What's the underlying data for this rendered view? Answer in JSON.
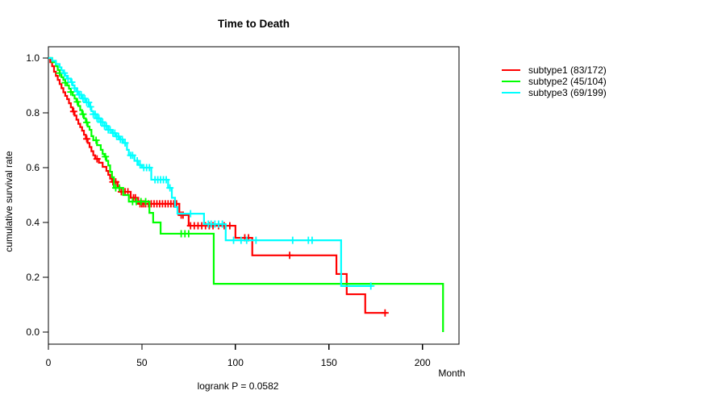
{
  "title": "Time to Death",
  "x_axis": {
    "label": "Month",
    "tick_labels": [
      "0",
      "50",
      "100",
      "150",
      "200"
    ],
    "tick_values": [
      0,
      50,
      100,
      150,
      200
    ]
  },
  "y_axis": {
    "label": "cumulative survival rate",
    "tick_labels": [
      "0.0",
      "0.2",
      "0.4",
      "0.6",
      "0.8",
      "1.0"
    ],
    "tick_values": [
      0,
      0.2,
      0.4,
      0.6,
      0.8,
      1.0
    ]
  },
  "footer": {
    "logrank_text": "logrank P = 0.0582"
  },
  "legend": {
    "position": "right-outside",
    "items": [
      {
        "label": "subtype1 (83/172)",
        "color": "#FF0000"
      },
      {
        "label": "subtype2 (45/104)",
        "color": "#00FF00"
      },
      {
        "label": "subtype3 (69/199)",
        "color": "#00FFFF"
      }
    ]
  },
  "chart_data": {
    "type": "line",
    "subtype": "kaplan-meier-step",
    "title": "Time to Death",
    "xlabel": "Month",
    "ylabel": "cumulative survival rate",
    "xlim": [
      0,
      219.5
    ],
    "ylim": [
      -0.044,
      1.044
    ],
    "xticks": [
      0,
      50,
      100,
      150,
      200
    ],
    "yticks": [
      0,
      0.2,
      0.4,
      0.6,
      0.8,
      1.0
    ],
    "grid": false,
    "legend_position": "right-outside",
    "annotation": "logrank P = 0.0582",
    "series": [
      {
        "name": "subtype1",
        "label": "subtype1 (83/172)",
        "events_over_n": "83/172",
        "color": "#FF0000",
        "steps": [
          [
            0,
            1.0
          ],
          [
            1,
            0.985
          ],
          [
            2,
            0.97
          ],
          [
            3,
            0.95
          ],
          [
            4,
            0.935
          ],
          [
            5,
            0.92
          ],
          [
            6,
            0.905
          ],
          [
            7,
            0.89
          ],
          [
            8,
            0.875
          ],
          [
            9,
            0.862
          ],
          [
            10,
            0.85
          ],
          [
            11,
            0.835
          ],
          [
            12,
            0.82
          ],
          [
            13,
            0.805
          ],
          [
            14,
            0.79
          ],
          [
            15,
            0.775
          ],
          [
            16,
            0.76
          ],
          [
            17,
            0.748
          ],
          [
            18,
            0.735
          ],
          [
            19,
            0.72
          ],
          [
            20,
            0.705
          ],
          [
            21,
            0.69
          ],
          [
            22,
            0.675
          ],
          [
            23,
            0.66
          ],
          [
            24,
            0.645
          ],
          [
            25,
            0.632
          ],
          [
            27,
            0.618
          ],
          [
            29,
            0.603
          ],
          [
            31,
            0.588
          ],
          [
            32,
            0.574
          ],
          [
            33,
            0.56
          ],
          [
            34,
            0.548
          ],
          [
            37,
            0.53
          ],
          [
            38,
            0.512
          ],
          [
            44,
            0.49
          ],
          [
            48,
            0.468
          ],
          [
            70,
            0.427
          ],
          [
            75,
            0.388
          ],
          [
            100,
            0.344
          ],
          [
            109,
            0.28
          ],
          [
            154,
            0.212
          ],
          [
            159.5,
            0.138
          ],
          [
            169.4,
            0.07
          ]
        ],
        "end_time": 181,
        "censor_times": [
          13.5,
          20.5,
          26,
          34.5,
          36,
          39,
          41,
          42.5,
          45.5,
          46.5,
          49,
          50,
          51,
          52,
          53.5,
          55,
          56.5,
          58,
          59.5,
          61,
          62.5,
          64,
          65.5,
          67,
          68.5,
          71,
          72,
          76,
          78,
          80,
          82,
          84,
          86,
          88,
          91,
          94,
          97,
          105,
          107,
          129,
          180
        ]
      },
      {
        "name": "subtype2",
        "label": "subtype2 (45/104)",
        "events_over_n": "45/104",
        "color": "#00FF00",
        "steps": [
          [
            0,
            1.0
          ],
          [
            2,
            0.985
          ],
          [
            4,
            0.97
          ],
          [
            5,
            0.956
          ],
          [
            6,
            0.945
          ],
          [
            7,
            0.93
          ],
          [
            8,
            0.92
          ],
          [
            9,
            0.91
          ],
          [
            10,
            0.9
          ],
          [
            11,
            0.888
          ],
          [
            12,
            0.876
          ],
          [
            13,
            0.864
          ],
          [
            14,
            0.852
          ],
          [
            15,
            0.84
          ],
          [
            16,
            0.825
          ],
          [
            17,
            0.81
          ],
          [
            18,
            0.795
          ],
          [
            19,
            0.78
          ],
          [
            20,
            0.765
          ],
          [
            21,
            0.75
          ],
          [
            22,
            0.738
          ],
          [
            23,
            0.715
          ],
          [
            24,
            0.7
          ],
          [
            26,
            0.682
          ],
          [
            28,
            0.665
          ],
          [
            29,
            0.65
          ],
          [
            30,
            0.64
          ],
          [
            31,
            0.625
          ],
          [
            32,
            0.608
          ],
          [
            33,
            0.585
          ],
          [
            34,
            0.565
          ],
          [
            35,
            0.526
          ],
          [
            40,
            0.5
          ],
          [
            43,
            0.476
          ],
          [
            54,
            0.435
          ],
          [
            56,
            0.4
          ],
          [
            60,
            0.359
          ],
          [
            88.4,
            0.176
          ],
          [
            211,
            0.0
          ]
        ],
        "end_time": 211,
        "censor_times": [
          6,
          9,
          12,
          15.5,
          18.5,
          20.5,
          25.5,
          30.5,
          36,
          38,
          45,
          47,
          49.5,
          52,
          71,
          73,
          75
        ]
      },
      {
        "name": "subtype3",
        "label": "subtype3 (69/199)",
        "events_over_n": "69/199",
        "color": "#00FFFF",
        "steps": [
          [
            0,
            1.0
          ],
          [
            2,
            0.99
          ],
          [
            4,
            0.978
          ],
          [
            6,
            0.966
          ],
          [
            7,
            0.955
          ],
          [
            8,
            0.945
          ],
          [
            9,
            0.935
          ],
          [
            10,
            0.925
          ],
          [
            12,
            0.912
          ],
          [
            13,
            0.9
          ],
          [
            14,
            0.89
          ],
          [
            15,
            0.878
          ],
          [
            16,
            0.866
          ],
          [
            18,
            0.852
          ],
          [
            20,
            0.838
          ],
          [
            22,
            0.822
          ],
          [
            23,
            0.806
          ],
          [
            24,
            0.795
          ],
          [
            26,
            0.78
          ],
          [
            28,
            0.766
          ],
          [
            30,
            0.752
          ],
          [
            32,
            0.738
          ],
          [
            34,
            0.726
          ],
          [
            36,
            0.714
          ],
          [
            38,
            0.703
          ],
          [
            40,
            0.69
          ],
          [
            42,
            0.665
          ],
          [
            43,
            0.645
          ],
          [
            46,
            0.625
          ],
          [
            48,
            0.61
          ],
          [
            50,
            0.6
          ],
          [
            55,
            0.556
          ],
          [
            64,
            0.526
          ],
          [
            66,
            0.49
          ],
          [
            67.7,
            0.456
          ],
          [
            69,
            0.432
          ],
          [
            83.2,
            0.394
          ],
          [
            94.8,
            0.335
          ],
          [
            156.5,
            0.168
          ]
        ],
        "end_time": 173.2,
        "censor_times": [
          8.5,
          10.5,
          12.5,
          14,
          15.5,
          16.5,
          17.5,
          18.5,
          19.5,
          20.5,
          21.5,
          22.5,
          24,
          25,
          26,
          27,
          28,
          29,
          30,
          31,
          32,
          33,
          34.5,
          35.5,
          36.5,
          37.5,
          38.5,
          39.5,
          41,
          44,
          45,
          47.5,
          49,
          51,
          52.5,
          54,
          57,
          58.5,
          60,
          61.5,
          63,
          65,
          76,
          85.5,
          87,
          89,
          91,
          93,
          99,
          103,
          106,
          111,
          130.6,
          139,
          141,
          172.4
        ]
      }
    ]
  }
}
